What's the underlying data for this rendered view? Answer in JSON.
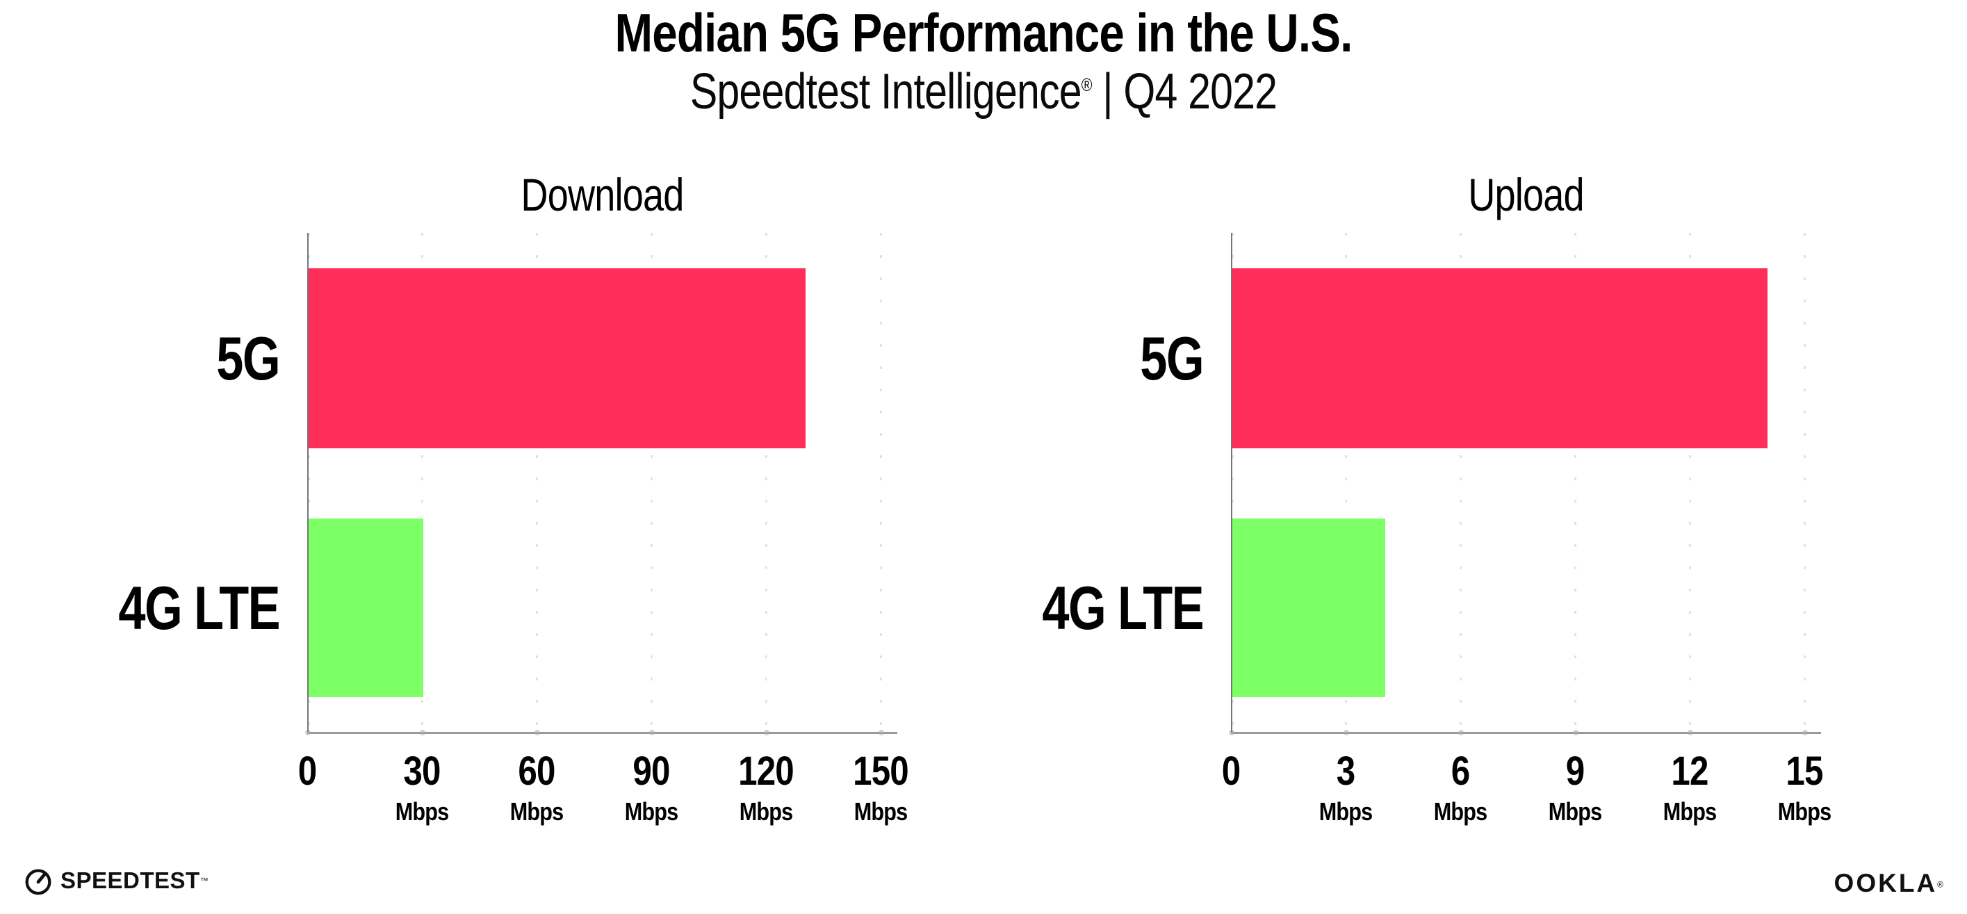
{
  "header": {
    "title": "Median 5G Performance in the U.S.",
    "subtitle_brand": "Speedtest Intelligence",
    "subtitle_reg": "®",
    "subtitle_rest": " | Q4 2022"
  },
  "footer": {
    "speedtest_label": "SPEEDTEST",
    "speedtest_tm": "™",
    "ookla_label": "OOKLA",
    "ookla_reg": "®"
  },
  "colors": {
    "pink_5g": "#FF2D5A",
    "green_4g": "#7DFF66",
    "grid": "#E1E1EC",
    "axis": "#999999",
    "spine": "#777777"
  },
  "chart_data": [
    {
      "type": "bar",
      "orientation": "horizontal",
      "title": "Download",
      "categories": [
        "5G",
        "4G LTE"
      ],
      "values": [
        130,
        30
      ],
      "unit": "Mbps",
      "xlim": [
        0,
        150
      ],
      "xticks": [
        0,
        30,
        60,
        90,
        120,
        150
      ],
      "bar_colors": [
        "#FF2D5A",
        "#7DFF66"
      ],
      "grid": "vertical-dotted",
      "legend": "none"
    },
    {
      "type": "bar",
      "orientation": "horizontal",
      "title": "Upload",
      "categories": [
        "5G",
        "4G LTE"
      ],
      "values": [
        14,
        4
      ],
      "unit": "Mbps",
      "xlim": [
        0,
        15
      ],
      "xticks": [
        0,
        3,
        6,
        9,
        12,
        15
      ],
      "bar_colors": [
        "#FF2D5A",
        "#7DFF66"
      ],
      "grid": "vertical-dotted",
      "legend": "none"
    }
  ]
}
